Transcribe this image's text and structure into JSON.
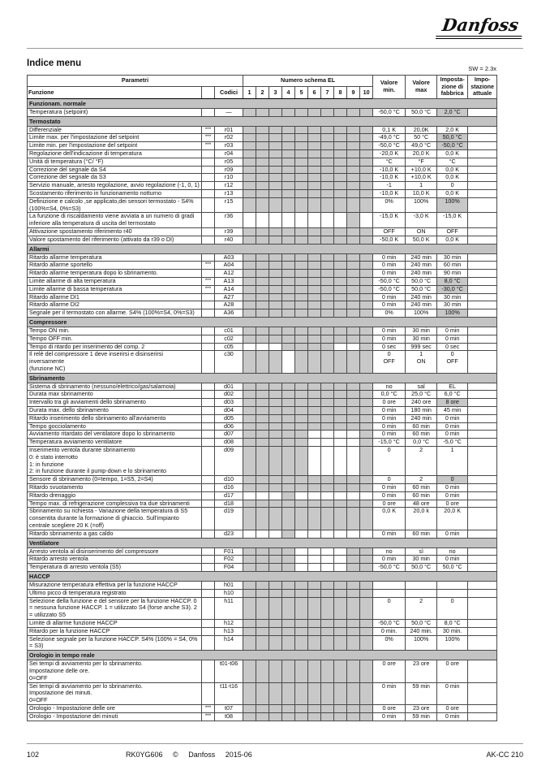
{
  "page": {
    "logo": "Danfoss",
    "title": "Indice menu",
    "sw_version": "SW = 2.3x"
  },
  "table": {
    "headers": {
      "parametri": "Parametri",
      "funzione": "Funzione",
      "stars": "",
      "codici": "Codici",
      "schema_group": "Numero schema EL",
      "schema_cols": [
        "1",
        "2",
        "3",
        "4",
        "5",
        "6",
        "7",
        "8",
        "9",
        "10"
      ],
      "valore_min": "Valore\nmin.",
      "valore_max": "Valore\nmax",
      "fabbrica": "Imposta-\nzione di\nfabbrica",
      "attuale": "Impo-\nstazione\nattuale"
    },
    "rows": [
      {
        "t": "sec",
        "label": "Funzionam. normale"
      },
      {
        "t": "p",
        "f": "Temperatura (setpoint)",
        "s": "",
        "c": "—",
        "g": "all",
        "min": "-50,0 °C",
        "max": "50,0 °C",
        "fab": "2,0 °C",
        "hl": true
      },
      {
        "t": "sec",
        "label": "Termostato"
      },
      {
        "t": "p",
        "f": "Differenziale",
        "s": "***",
        "c": "r01",
        "g": "all",
        "min": "0,1 K",
        "max": "20,0K",
        "fab": "2,0 K",
        "hl": false
      },
      {
        "t": "p",
        "f": "Limite max. per l'impostazione del setpoint",
        "s": "***",
        "c": "r02",
        "g": "all",
        "min": "-49,0 °C",
        "max": "50 °C",
        "fab": "50,0 °C",
        "hl": true
      },
      {
        "t": "p",
        "f": "Limite min. per l'impostazione del setpoint",
        "s": "***",
        "c": "r03",
        "g": "all",
        "min": "-50,0 °C",
        "max": "49,0 °C",
        "fab": "-50,0 °C",
        "hl": true
      },
      {
        "t": "p",
        "f": "Regolazione dell'indicazione di temperatura",
        "s": "",
        "c": "r04",
        "g": "all",
        "min": "-20,0 K",
        "max": "20,0 K",
        "fab": "0,0 K",
        "hl": false
      },
      {
        "t": "p",
        "f": "Unità di temperatura (°C/ °F)",
        "s": "",
        "c": "r05",
        "g": "all",
        "min": "°C",
        "max": "°F",
        "fab": "°C",
        "hl": false
      },
      {
        "t": "p",
        "f": "Correzione del segnale da S4",
        "s": "",
        "c": "r09",
        "g": "all",
        "min": "-10,0 K",
        "max": "+10,0 K",
        "fab": "0,0 K",
        "hl": false
      },
      {
        "t": "p",
        "f": "Correzione del segnale da S3",
        "s": "",
        "c": "r10",
        "g": "all",
        "min": "-10,0 K",
        "max": "+10,0 K",
        "fab": "0,0 K",
        "hl": false
      },
      {
        "t": "p",
        "f": "Servizio manuale, arresto regolazione, avvio regolazione (-1, 0, 1)",
        "s": "",
        "c": "r12",
        "g": "all",
        "min": "-1",
        "max": "1",
        "fab": "0",
        "hl": false
      },
      {
        "t": "p",
        "f": "Scostamento riferimento in funzionamento notturno",
        "s": "",
        "c": "r13",
        "g": "all",
        "min": "-10,0 K",
        "max": "10,0 K",
        "fab": "0,0 K",
        "hl": false
      },
      {
        "t": "p",
        "f": "Definizione e calcolo ,se applicato,dei sensori termostato - S4% (100%=S4, 0%=S3)",
        "s": "",
        "c": "r15",
        "g": "all",
        "min": "0%",
        "max": "100%",
        "fab": "100%",
        "hl": true
      },
      {
        "t": "p",
        "f": "La funzione di riscaldamento viene avviata a un numero di gradi inferiore alla temperatura di uscita del termostato",
        "s": "",
        "c": "r36",
        "g": [
          9
        ],
        "min": "-15,0 K",
        "max": "-3,0 K",
        "fab": "-15,0 K",
        "hl": false
      },
      {
        "t": "p",
        "f": "Attivazione spostamento riferimento r40",
        "s": "",
        "c": "r39",
        "g": "all",
        "min": "OFF",
        "max": "ON",
        "fab": "OFF",
        "hl": false
      },
      {
        "t": "p",
        "f": "Valore spostamento del riferimento (attivato da r39 o DI)",
        "s": "",
        "c": "r40",
        "g": "all",
        "min": "-50,0 K",
        "max": "50,0 K",
        "fab": "0,0 K",
        "hl": false
      },
      {
        "t": "sec",
        "label": "Allarmi"
      },
      {
        "t": "p",
        "f": "Ritardo allarme temperatura",
        "s": "",
        "c": "A03",
        "g": "all",
        "min": "0 min",
        "max": "240 min",
        "fab": "30 min",
        "hl": false
      },
      {
        "t": "p",
        "f": "Ritardo allarme sportello",
        "s": "***",
        "c": "A04",
        "g": "all",
        "min": "0 min",
        "max": "240 min",
        "fab": "60 min",
        "hl": false
      },
      {
        "t": "p",
        "f": "Ritardo allarme temperatura dopo lo sbrinamento.",
        "s": "",
        "c": "A12",
        "g": "all",
        "min": "0 min",
        "max": "240 min",
        "fab": "90 min",
        "hl": false
      },
      {
        "t": "p",
        "f": "Limite allarme di alta temperatura",
        "s": "***",
        "c": "A13",
        "g": "all",
        "min": "-50,0 °C",
        "max": "50,0 °C",
        "fab": "8,0 °C",
        "hl": true
      },
      {
        "t": "p",
        "f": "Limite allarme di bassa temperatura",
        "s": "***",
        "c": "A14",
        "g": "all",
        "min": "-50,0 °C",
        "max": "50,0 °C",
        "fab": "-30,0 °C",
        "hl": true
      },
      {
        "t": "p",
        "f": "Ritardo allarme DI1",
        "s": "",
        "c": "A27",
        "g": "all",
        "min": "0 min",
        "max": "240 min",
        "fab": "30 min",
        "hl": false
      },
      {
        "t": "p",
        "f": "Ritardo allarme DI2",
        "s": "",
        "c": "A28",
        "g": "all",
        "min": "0 min",
        "max": "240 min",
        "fab": "30 min",
        "hl": false
      },
      {
        "t": "p",
        "f": "Segnale per il termostato con allarme. S4% (100%=S4, 0%=S3)",
        "s": "",
        "c": "A36",
        "g": "all",
        "min": "0%",
        "max": "100%",
        "fab": "100%",
        "hl": true
      },
      {
        "t": "sec",
        "label": "Compressore"
      },
      {
        "t": "p",
        "f": "Tempo ON  min.",
        "s": "",
        "c": "c01",
        "g": "all",
        "min": "0 min",
        "max": "30 min",
        "fab": "0 min",
        "hl": false
      },
      {
        "t": "p",
        "f": "Tempo OFF  min.",
        "s": "",
        "c": "c02",
        "g": "all",
        "min": "0 min",
        "max": "30 min",
        "fab": "0 min",
        "hl": false
      },
      {
        "t": "p",
        "f": "Tempo di ritardo per inserimento del comp. 2",
        "s": "",
        "c": "c05",
        "g": [
          4,
          5,
          6,
          7,
          10
        ],
        "min": "0 sec",
        "max": "999 sec",
        "fab": "0 sec",
        "hl": false
      },
      {
        "t": "p",
        "f": "Il relè del compressore 1 deve inserirsi e disinserirsi\ninversamente\n(funzione NC)",
        "s": "",
        "c": "c30",
        "g": [
          1,
          2,
          3,
          5,
          6,
          7,
          8,
          9,
          10
        ],
        "min": "0\nOFF",
        "max": "1\nON",
        "fab": "0\nOFF",
        "hl": false
      },
      {
        "t": "sec",
        "label": "Sbrinamento"
      },
      {
        "t": "p",
        "f": "Sistema di sbrinamento (nessuno/elettrico/gas/salamoia)",
        "s": "",
        "c": "d01",
        "g": "all",
        "min": "no",
        "max": "sal",
        "fab": "EL",
        "hl": false
      },
      {
        "t": "p",
        "f": "Durata max sbrinamento",
        "s": "",
        "c": "d02",
        "g": "all",
        "min": "0,0 °C",
        "max": "25,0 °C",
        "fab": "6,0 °C",
        "hl": false
      },
      {
        "t": "p",
        "f": "Intervallo tra gli avviamenti dello sbrinamento",
        "s": "",
        "c": "d03",
        "g": "all",
        "min": "0 ore",
        "max": "240 ore",
        "fab": "8 ore",
        "hl": true
      },
      {
        "t": "p",
        "f": "Durata max. dello sbrinamento",
        "s": "",
        "c": "d04",
        "g": "all",
        "min": "0 min",
        "max": "180 min",
        "fab": "45 min",
        "hl": false
      },
      {
        "t": "p",
        "f": "Ritardo inserimento dello sbrinamento all'avviamento",
        "s": "",
        "c": "d05",
        "g": "all",
        "min": "0 min",
        "max": "240 min",
        "fab": "0 min",
        "hl": false
      },
      {
        "t": "p",
        "f": "Tempo gocciolamento",
        "s": "",
        "c": "d06",
        "g": "all",
        "min": "0 min",
        "max": "60 min",
        "fab": "0 min",
        "hl": false
      },
      {
        "t": "p",
        "f": "Avviamento ritardato del ventilatore dopo lo sbrinamento",
        "s": "",
        "c": "d07",
        "g": [
          1,
          2,
          3,
          4,
          5,
          10
        ],
        "min": "0 min",
        "max": "60 min",
        "fab": "0 min",
        "hl": false
      },
      {
        "t": "p",
        "f": "Temperatura avviamento ventilatore",
        "s": "",
        "c": "d08",
        "g": [
          1,
          2,
          3,
          4,
          5,
          10
        ],
        "min": "-15,0 °C",
        "max": "0,0 °C",
        "fab": "-5,0 °C",
        "hl": false
      },
      {
        "t": "p",
        "f": "Inserimento ventola durante sbrinamento\n0: è stato interrotto\n1: in funzione\n2: in funzione durante il pump-down e lo sbrinamento",
        "s": "",
        "c": "d09",
        "g": [
          1,
          2,
          3,
          4,
          5,
          10
        ],
        "min": "0",
        "max": "2",
        "fab": "1",
        "hl": false
      },
      {
        "t": "p",
        "f": "Sensore di sbrinamento (0=tempo, 1=S5, 2=S4)",
        "s": "",
        "c": "d10",
        "g": "all",
        "min": "0",
        "max": "2",
        "fab": "0",
        "hl": true
      },
      {
        "t": "p",
        "f": "Ritardo svuotamento",
        "s": "",
        "c": "d16",
        "g": "all",
        "min": "0 min",
        "max": "60 min",
        "fab": "0 min",
        "hl": false
      },
      {
        "t": "p",
        "f": "Ritardo drenaggio",
        "s": "",
        "c": "d17",
        "g": [
          4
        ],
        "min": "0 min",
        "max": "60 min",
        "fab": "0 min",
        "hl": false
      },
      {
        "t": "p",
        "f": "Tempo max. di refrigerazione complessiva tra due sbrinamenti",
        "s": "",
        "c": "d18",
        "g": "all",
        "min": "0 ore",
        "max": "48 ore",
        "fab": "0 ore",
        "hl": false
      },
      {
        "t": "p",
        "f": "Sbrinamento su richiesta - Variazione della temperatura di S5 consentita durante la formazione di ghiaccio. Sull'impianto centrale scegliere 20 K (=off)",
        "s": "",
        "c": "d19",
        "g": "all",
        "min": "0,0 K",
        "max": "20,0 k",
        "fab": "20,0 K",
        "hl": false
      },
      {
        "t": "p",
        "f": "Ritardo sbrinamento a gas caldo",
        "s": "",
        "c": "d23",
        "g": [
          4
        ],
        "min": "0 min",
        "max": "60 min",
        "fab": "0 min",
        "hl": false
      },
      {
        "t": "sec",
        "label": "Ventilatore"
      },
      {
        "t": "p",
        "f": "Arresto ventola al disinserimento del compressore",
        "s": "",
        "c": "F01",
        "g": [
          1,
          2,
          3,
          4,
          9,
          10
        ],
        "min": "no",
        "max": "sì",
        "fab": "no",
        "hl": false
      },
      {
        "t": "p",
        "f": "Ritardo arresto ventola",
        "s": "",
        "c": "F02",
        "g": [
          1,
          2,
          3,
          4,
          9,
          10
        ],
        "min": "0 min",
        "max": "30 min",
        "fab": "0 min",
        "hl": false
      },
      {
        "t": "p",
        "f": "Temperatura di arresto ventola (S5)",
        "s": "",
        "c": "F04",
        "g": [
          1,
          2,
          3,
          4,
          9,
          10
        ],
        "min": "-50,0 °C",
        "max": "50,0 °C",
        "fab": "50,0 °C",
        "hl": false
      },
      {
        "t": "sec",
        "label": "HACCP"
      },
      {
        "t": "p",
        "f": "Misurazione temperatura effettiva per la funzione HACCP",
        "s": "",
        "c": "h01",
        "g": "all",
        "min": "",
        "max": "",
        "fab": "",
        "hl": false
      },
      {
        "t": "p",
        "f": "Ultimo picco di temperatura registrato",
        "s": "",
        "c": "h10",
        "g": "all",
        "min": "",
        "max": "",
        "fab": "",
        "hl": false
      },
      {
        "t": "p",
        "f": "Selezione della funzione e del sensore per la funzione HACCP. 0 = nessuna funzione HACCP. 1 = utilizzato S4 (forse anche S3). 2 = utilizzato S5",
        "s": "",
        "c": "h11",
        "g": "all",
        "min": "0",
        "max": "2",
        "fab": "0",
        "hl": false
      },
      {
        "t": "p",
        "f": "Limite di allarme funzione HACCP",
        "s": "",
        "c": "h12",
        "g": "all",
        "min": "-50,0 °C",
        "max": "50,0 °C",
        "fab": "8,0 °C",
        "hl": false
      },
      {
        "t": "p",
        "f": "Ritardo per la funzione HACCP",
        "s": "",
        "c": "h13",
        "g": "all",
        "min": "0 min.",
        "max": "240 min.",
        "fab": "30 min.",
        "hl": false
      },
      {
        "t": "p",
        "f": "Selezione segnale per la funzione HACCP. S4% (100% = S4, 0% = S3)",
        "s": "",
        "c": "h14",
        "g": "all",
        "min": "0%",
        "max": "100%",
        "fab": "100%",
        "hl": false
      },
      {
        "t": "sec",
        "label": "Orologio in tempo reale"
      },
      {
        "t": "p",
        "f": "Sei tempi di avviamento per lo sbrinamento.\nImpostazione delle ore.\n0=OFF",
        "s": "",
        "c": "t01-t06",
        "g": "all",
        "min": "0 ore",
        "max": "23 ore",
        "fab": "0 ore",
        "hl": false
      },
      {
        "t": "p",
        "f": "Sei tempi di avviamento per lo sbrinamento.\nImpostazione dei minuti.\n0=OFF",
        "s": "",
        "c": "t11-t16",
        "g": "all",
        "min": "0 min",
        "max": "59 min",
        "fab": "0 min",
        "hl": false
      },
      {
        "t": "p",
        "f": "Orologio - Impostazione delle ore",
        "s": "***",
        "c": "t07",
        "g": "all",
        "min": "0 ore",
        "max": "23 ore",
        "fab": "0 ore",
        "hl": false
      },
      {
        "t": "p",
        "f": "Orologio - Impostazione dei minuti",
        "s": "***",
        "c": "t08",
        "g": "all",
        "min": "0 min",
        "max": "59 min",
        "fab": "0 min",
        "hl": false
      }
    ]
  },
  "footer": {
    "page_number": "102",
    "code": "RK0YG606",
    "copyright": "©",
    "brand": "Danfoss",
    "date": "2015-06",
    "right": "AK-CC 210"
  }
}
